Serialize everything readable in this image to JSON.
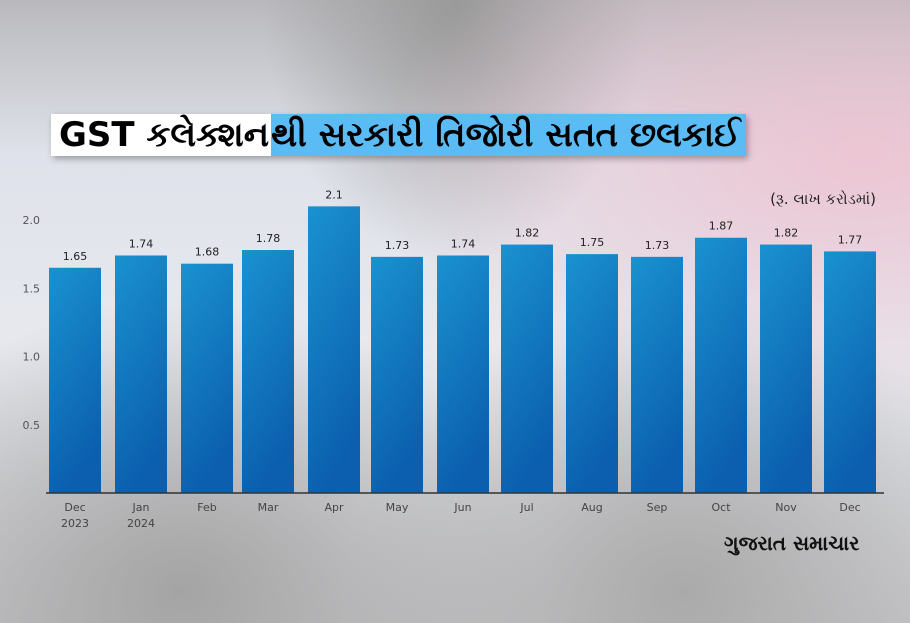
{
  "title": {
    "part1": "GST કલેક્શન",
    "part2": "થી સરકારી તિજોરી સતત છલકાઈ"
  },
  "logo_text": "ગુજરાત સમાચાર",
  "chart_data": {
    "type": "bar",
    "unit_label": "(રૂ. લાખ કરોડમાં)",
    "categories": [
      "Dec\n2023",
      "Jan\n2024",
      "Feb",
      "Mar",
      "Apr",
      "May",
      "Jun",
      "Jul",
      "Aug",
      "Sep",
      "Oct",
      "Nov",
      "Dec"
    ],
    "values": [
      1.65,
      1.74,
      1.68,
      1.78,
      2.1,
      1.73,
      1.74,
      1.82,
      1.75,
      1.73,
      1.87,
      1.82,
      1.77
    ],
    "data_labels": [
      "1.65",
      "1.74",
      "1.68",
      "1.78",
      "2.1",
      "1.73",
      "1.74",
      "1.82",
      "1.75",
      "1.73",
      "1.87",
      "1.82",
      "1.77"
    ],
    "yticks": [
      "0.5",
      "1.0",
      "1.5",
      "2.0"
    ],
    "ylim": [
      0,
      2.2
    ],
    "grid": false,
    "colors": {
      "bar_top": "#1a92d0",
      "bar_bottom": "#0b5fae",
      "axis": "#333333"
    }
  }
}
